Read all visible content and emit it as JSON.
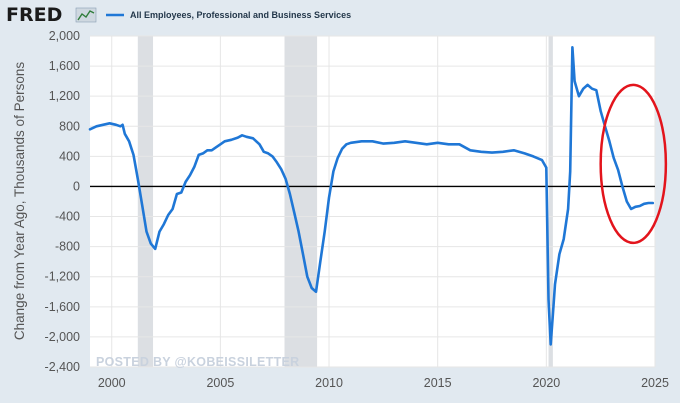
{
  "header": {
    "logo_text": "FRED",
    "series_label": "All Employees, Professional and Business Services"
  },
  "watermark": "POSTED BY @KOBEISSILETTER",
  "colors": {
    "background": "#e1e9f0",
    "plot_background": "#ffffff",
    "line": "#1f77d6",
    "recession": "#dcdfe3",
    "zero_line": "#000000",
    "annotation_ellipse": "#e3141c"
  },
  "chart_data": {
    "type": "line",
    "title": "",
    "xlabel": "",
    "ylabel": "Change from Year Ago, Thousands of Persons",
    "xlim": [
      1999.0,
      2025.0
    ],
    "ylim": [
      -2400,
      2000
    ],
    "x_ticks": [
      2000,
      2005,
      2010,
      2015,
      2020,
      2025
    ],
    "x_tick_labels": [
      "2000",
      "2005",
      "2010",
      "2015",
      "2020",
      "2025"
    ],
    "y_ticks": [
      2000,
      1600,
      1200,
      800,
      400,
      0,
      -400,
      -800,
      -1200,
      -1600,
      -2000,
      -2400
    ],
    "y_tick_labels": [
      "2,000",
      "1,600",
      "1,200",
      "800",
      "400",
      "0",
      "-400",
      "-800",
      "-1,200",
      "-1,600",
      "-2,000",
      "-2,400"
    ],
    "grid": true,
    "legend": "top-left",
    "recessions": [
      [
        2001.2,
        2001.9
      ],
      [
        2007.95,
        2009.45
      ],
      [
        2020.1,
        2020.3
      ]
    ],
    "reference_line": 0,
    "annotation": {
      "type": "ellipse",
      "center": [
        2024.0,
        300
      ],
      "radii_years": 1.5,
      "radii_value": 1050
    },
    "series": [
      {
        "name": "All Employees, Professional and Business Services",
        "x": [
          1999.0,
          1999.3,
          1999.6,
          1999.9,
          2000.2,
          2000.4,
          2000.5,
          2000.6,
          2000.8,
          2001.0,
          2001.2,
          2001.4,
          2001.6,
          2001.8,
          2002.0,
          2002.2,
          2002.4,
          2002.6,
          2002.8,
          2003.0,
          2003.2,
          2003.4,
          2003.6,
          2003.8,
          2004.0,
          2004.2,
          2004.4,
          2004.6,
          2004.8,
          2005.0,
          2005.2,
          2005.5,
          2005.8,
          2006.0,
          2006.2,
          2006.5,
          2006.8,
          2007.0,
          2007.2,
          2007.4,
          2007.6,
          2007.8,
          2008.0,
          2008.2,
          2008.4,
          2008.6,
          2008.8,
          2009.0,
          2009.2,
          2009.4,
          2009.6,
          2009.8,
          2010.0,
          2010.2,
          2010.4,
          2010.6,
          2010.8,
          2011.0,
          2011.5,
          2012.0,
          2012.5,
          2013.0,
          2013.5,
          2014.0,
          2014.5,
          2015.0,
          2015.5,
          2016.0,
          2016.5,
          2017.0,
          2017.5,
          2018.0,
          2018.5,
          2019.0,
          2019.4,
          2019.8,
          2020.0,
          2020.1,
          2020.2,
          2020.3,
          2020.4,
          2020.6,
          2020.8,
          2021.0,
          2021.1,
          2021.2,
          2021.3,
          2021.5,
          2021.7,
          2021.9,
          2022.1,
          2022.3,
          2022.5,
          2022.7,
          2022.9,
          2023.1,
          2023.3,
          2023.5,
          2023.7,
          2023.9,
          2024.1,
          2024.3,
          2024.5,
          2024.7,
          2024.9
        ],
        "y": [
          760,
          800,
          820,
          840,
          820,
          800,
          820,
          700,
          600,
          420,
          100,
          -250,
          -600,
          -760,
          -830,
          -600,
          -500,
          -380,
          -300,
          -100,
          -80,
          60,
          150,
          260,
          420,
          440,
          480,
          480,
          520,
          560,
          600,
          620,
          650,
          680,
          660,
          640,
          560,
          460,
          440,
          400,
          320,
          230,
          100,
          -100,
          -350,
          -600,
          -900,
          -1200,
          -1350,
          -1400,
          -1000,
          -600,
          -150,
          200,
          380,
          500,
          560,
          580,
          600,
          600,
          570,
          580,
          600,
          580,
          560,
          580,
          560,
          560,
          480,
          460,
          450,
          460,
          480,
          440,
          400,
          350,
          250,
          -1500,
          -2100,
          -1700,
          -1300,
          -900,
          -700,
          -300,
          200,
          1850,
          1400,
          1200,
          1300,
          1350,
          1300,
          1280,
          1000,
          800,
          600,
          380,
          220,
          0,
          -200,
          -300,
          -270,
          -260,
          -230,
          -220,
          -220
        ]
      }
    ]
  }
}
